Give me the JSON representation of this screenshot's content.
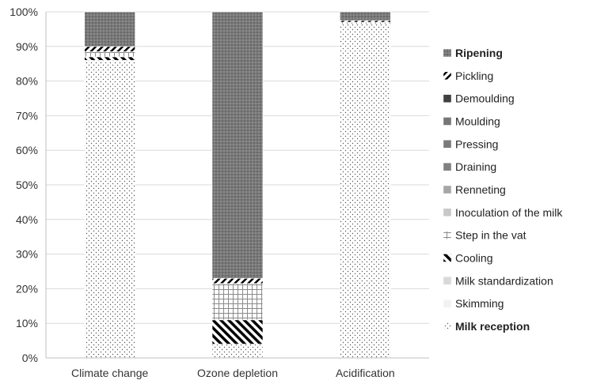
{
  "chart_data": {
    "type": "bar",
    "stacked": true,
    "percent": true,
    "categories": [
      "Climate change",
      "Ozone depletion",
      "Acidification"
    ],
    "ylim": [
      0,
      100
    ],
    "y_ticks": [
      "0%",
      "10%",
      "20%",
      "30%",
      "40%",
      "50%",
      "60%",
      "70%",
      "80%",
      "90%",
      "100%"
    ],
    "grid": true,
    "legend_position": "right",
    "series": [
      {
        "name": "Milk reception",
        "values": [
          86,
          4,
          96.5
        ],
        "pattern": "dots-sparse",
        "color": "#9a9a9a",
        "bold": true
      },
      {
        "name": "Skimming",
        "values": [
          0,
          0,
          0
        ],
        "pattern": "solid",
        "color": "#f2f2f2"
      },
      {
        "name": "Milk standardization",
        "values": [
          0,
          0,
          0
        ],
        "pattern": "solid",
        "color": "#d9d9d9"
      },
      {
        "name": "Cooling",
        "values": [
          1,
          7,
          0
        ],
        "pattern": "diag-thick",
        "color": "#000000"
      },
      {
        "name": "Step in the vat",
        "values": [
          1.5,
          10.5,
          0.5
        ],
        "pattern": "grid",
        "color": "#808080"
      },
      {
        "name": "Inoculation of the milk",
        "values": [
          0,
          0,
          0
        ],
        "pattern": "solid",
        "color": "#c8c8c8"
      },
      {
        "name": "Renneting",
        "values": [
          0,
          0,
          0
        ],
        "pattern": "solid",
        "color": "#a6a6a6"
      },
      {
        "name": "Draining",
        "values": [
          0,
          0,
          0
        ],
        "pattern": "solid",
        "color": "#808080"
      },
      {
        "name": "Pressing",
        "values": [
          0,
          0,
          0
        ],
        "pattern": "solid",
        "color": "#7a7a7a"
      },
      {
        "name": "Moulding",
        "values": [
          0,
          0,
          0
        ],
        "pattern": "solid",
        "color": "#767676"
      },
      {
        "name": "Demoulding",
        "values": [
          0,
          0,
          0
        ],
        "pattern": "solid",
        "color": "#404040"
      },
      {
        "name": "Pickling",
        "values": [
          1.5,
          1.5,
          0.5
        ],
        "pattern": "diag-back",
        "color": "#000000"
      },
      {
        "name": "Ripening",
        "values": [
          10,
          77,
          2.5
        ],
        "pattern": "dots-dense",
        "color": "#7a7a7a",
        "bold": true
      }
    ]
  }
}
